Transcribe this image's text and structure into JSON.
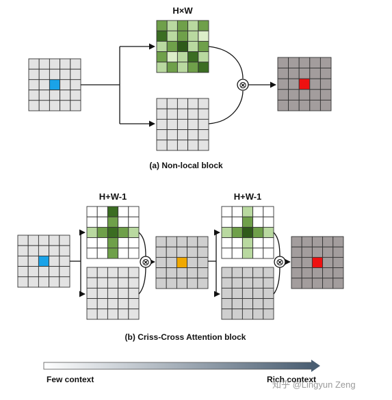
{
  "section_a": {
    "matrix_label": "H×W",
    "caption": "(a) Non-local block",
    "attention_map": [
      [
        "#6fa04a",
        "#b9d9a0",
        "#6fa04a",
        "#b9d9a0",
        "#6fa04a"
      ],
      [
        "#3b6d22",
        "#b9d9a0",
        "#6fa04a",
        "#b9d9a0",
        "#dceec9"
      ],
      [
        "#b9d9a0",
        "#6fa04a",
        "#2f5a1a",
        "#b9d9a0",
        "#6fa04a"
      ],
      [
        "#6fa04a",
        "#dceec9",
        "#b9d9a0",
        "#3b6d22",
        "#b9d9a0"
      ],
      [
        "#b9d9a0",
        "#6fa04a",
        "#b9d9a0",
        "#6fa04a",
        "#3b6d22"
      ]
    ]
  },
  "section_b": {
    "matrix_label_1": "H+W-1",
    "matrix_label_2": "H+W-1",
    "caption": "(b) Criss-Cross Attention block",
    "attention_map_1": [
      [
        "#ffffff",
        "#ffffff",
        "#3b6d22",
        "#ffffff",
        "#ffffff"
      ],
      [
        "#ffffff",
        "#ffffff",
        "#6fa04a",
        "#ffffff",
        "#ffffff"
      ],
      [
        "#b9d9a0",
        "#6fa04a",
        "#3b6d22",
        "#6fa04a",
        "#b9d9a0"
      ],
      [
        "#ffffff",
        "#ffffff",
        "#6fa04a",
        "#ffffff",
        "#ffffff"
      ],
      [
        "#ffffff",
        "#ffffff",
        "#6fa04a",
        "#ffffff",
        "#ffffff"
      ]
    ],
    "attention_map_2": [
      [
        "#ffffff",
        "#ffffff",
        "#b9d9a0",
        "#ffffff",
        "#ffffff"
      ],
      [
        "#ffffff",
        "#ffffff",
        "#6fa04a",
        "#ffffff",
        "#ffffff"
      ],
      [
        "#b9d9a0",
        "#6fa04a",
        "#2f5a1a",
        "#6fa04a",
        "#b9d9a0"
      ],
      [
        "#ffffff",
        "#ffffff",
        "#b9d9a0",
        "#ffffff",
        "#ffffff"
      ],
      [
        "#ffffff",
        "#ffffff",
        "#b9d9a0",
        "#ffffff",
        "#ffffff"
      ]
    ]
  },
  "colors": {
    "input_cell": "#e3e3e3",
    "feature_cell": "#cfcfcf",
    "output_cell": "#a39d9d",
    "grid_line": "#333333",
    "query_pixel": "#1aa3e8",
    "intermediate_pixel": "#f0a800",
    "output_pixel": "#ee1111"
  },
  "operator_symbol": "⊗",
  "context_bar": {
    "left_label": "Few context",
    "right_label": "Rich context"
  },
  "watermark": "知乎 @Lingyun Zeng"
}
